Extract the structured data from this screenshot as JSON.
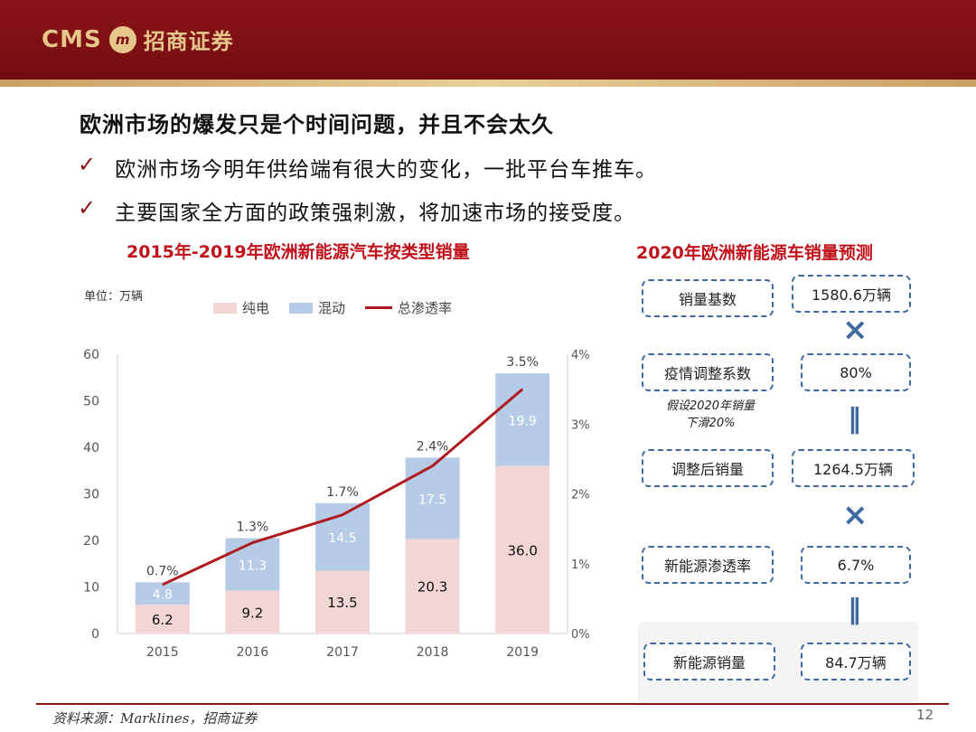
{
  "header": {
    "logo_text": "CMS",
    "logo_badge": "m",
    "company_name": "招商证券"
  },
  "slide": {
    "title": "欧洲市场的爆发只是个时间问题，并且不会太久",
    "bullets": [
      "欧洲市场今明年供给端有很大的变化，一批平台车推车。",
      "主要国家全方面的政策强刺激，将加速市场的接受度。"
    ],
    "bullet_mark": "✓"
  },
  "chart_data": {
    "type": "bar",
    "title": "2015年-2019年欧洲新能源汽车按类型销量",
    "unit_label": "单位：万辆",
    "categories": [
      "2015",
      "2016",
      "2017",
      "2018",
      "2019"
    ],
    "series": [
      {
        "name": "纯电",
        "type": "bar",
        "stacked": true,
        "values": [
          6.2,
          9.2,
          13.5,
          20.3,
          36.0
        ],
        "color": "#f2d6d6"
      },
      {
        "name": "混动",
        "type": "bar",
        "stacked": true,
        "values": [
          4.8,
          11.3,
          14.5,
          17.5,
          19.9
        ],
        "color": "#b5cbe6"
      },
      {
        "name": "总渗透率",
        "type": "line",
        "axis": "right",
        "values": [
          0.7,
          1.3,
          1.7,
          2.4,
          3.5
        ],
        "color": "#b01a1f"
      }
    ],
    "value_labels": {
      "pure": [
        "6.2",
        "9.2",
        "13.5",
        "20.3",
        "36.0"
      ],
      "hybrid": [
        "4.8",
        "11.3",
        "14.5",
        "17.5",
        "19.9"
      ],
      "penetration": [
        "0.7%",
        "1.3%",
        "1.7%",
        "2.4%",
        "3.5%"
      ]
    },
    "ylim": [
      0,
      60
    ],
    "yticks": [
      "0",
      "10",
      "20",
      "30",
      "40",
      "50",
      "60"
    ],
    "y2lim": [
      0,
      4
    ],
    "y2ticks": [
      "0%",
      "1%",
      "2%",
      "3%",
      "4%"
    ],
    "legend_position": "top"
  },
  "forecast": {
    "title": "2020年欧洲新能源车销量预测",
    "rows": [
      {
        "label": "销量基数",
        "value": "1580.6万辆"
      },
      {
        "label": "疫情调整系数",
        "value": "80%"
      },
      {
        "label": "调整后销量",
        "value": "1264.5万辆"
      },
      {
        "label": "新能源渗透率",
        "value": "6.7%"
      },
      {
        "label": "新能源销量",
        "value": "84.7万辆"
      }
    ],
    "note_line1": "假设2020年销量",
    "note_line2": "下滑20%",
    "times_symbol": "×",
    "equals_symbol": "‖"
  },
  "footer": {
    "source": "资料来源：Marklines，招商证券",
    "page_number": "12"
  }
}
